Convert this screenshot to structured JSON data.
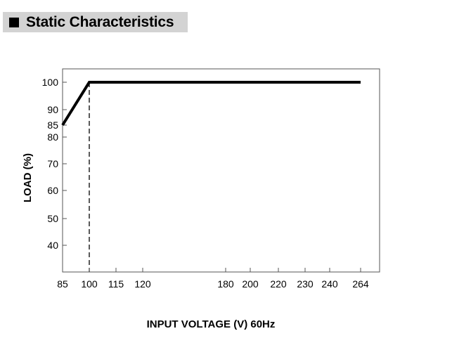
{
  "header": {
    "title": "Static Characteristics"
  },
  "chart_data": {
    "type": "line",
    "xlabel": "INPUT VOLTAGE (V) 60Hz",
    "ylabel": "LOAD (%)",
    "x_ticks": [
      85,
      100,
      115,
      120,
      180,
      200,
      220,
      230,
      240,
      264
    ],
    "y_ticks": [
      40,
      50,
      60,
      70,
      80,
      85,
      90,
      100
    ],
    "series": [
      {
        "x": [
          85,
          100,
          264
        ],
        "y": [
          85,
          100,
          100
        ]
      }
    ],
    "reference_lines": [
      {
        "orientation": "vertical",
        "x": 100,
        "style": "dashed"
      }
    ],
    "grid": false
  }
}
